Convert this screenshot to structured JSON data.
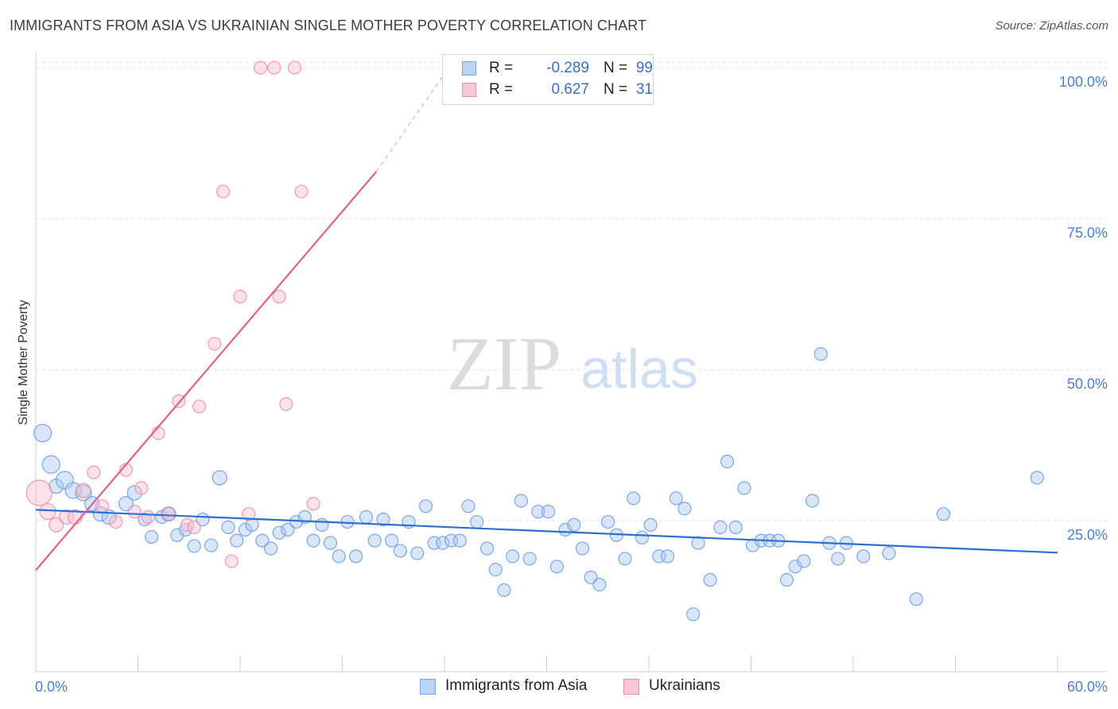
{
  "header": {
    "title": "IMMIGRANTS FROM ASIA VS UKRAINIAN SINGLE MOTHER POVERTY CORRELATION CHART",
    "source": "Source: ZipAtlas.com"
  },
  "watermark": {
    "zip": "ZIP",
    "atlas": "atlas"
  },
  "stats": [
    {
      "r_label": "R =",
      "r_value": "-0.289",
      "n_label": "N =",
      "n_value": "99",
      "color": "#7aa6e6",
      "fill": "#bcd3f3"
    },
    {
      "r_label": "R =",
      "r_value": "0.627",
      "n_label": "N =",
      "n_value": "31",
      "color": "#ec8fab",
      "fill": "#f8c8d6"
    }
  ],
  "chart_data": {
    "type": "scatter",
    "title": "IMMIGRANTS FROM ASIA VS UKRAINIAN SINGLE MOTHER POVERTY CORRELATION CHART",
    "xlabel": "",
    "ylabel": "Single Mother Poverty",
    "xlim": [
      0,
      60
    ],
    "ylim": [
      0,
      102
    ],
    "x_tick_labels": [
      "0.0%",
      "60.0%"
    ],
    "y_ticks": [
      25,
      50,
      75,
      100
    ],
    "y_tick_labels": [
      "25.0%",
      "50.0%",
      "75.0%",
      "100.0%"
    ],
    "grid": "horizontal dashed",
    "legend_position": "bottom-center",
    "series": [
      {
        "name": "Immigrants from Asia",
        "color": "#6f9fe0",
        "fill": "#a9c7ef",
        "trend": {
          "x": [
            0,
            60
          ],
          "y": [
            26.8,
            19.7
          ],
          "color": "#2f6fd0"
        },
        "points": [
          [
            0.4,
            39.5,
            11
          ],
          [
            0.9,
            34.3,
            11
          ],
          [
            1.2,
            30.7,
            9
          ],
          [
            1.7,
            31.7,
            11
          ],
          [
            2.2,
            30.0,
            10
          ],
          [
            2.8,
            29.6,
            10
          ],
          [
            3.3,
            27.8,
            9
          ],
          [
            3.8,
            26.1,
            9
          ],
          [
            4.3,
            25.6,
            9
          ],
          [
            5.3,
            27.8,
            9
          ],
          [
            5.8,
            29.6,
            9
          ],
          [
            6.4,
            25.2,
            8
          ],
          [
            6.8,
            22.3,
            8
          ],
          [
            7.4,
            25.6,
            8
          ],
          [
            7.8,
            26.1,
            9
          ],
          [
            8.3,
            22.6,
            8
          ],
          [
            8.8,
            23.5,
            8
          ],
          [
            9.3,
            20.8,
            8
          ],
          [
            9.8,
            25.2,
            8
          ],
          [
            10.3,
            20.9,
            8
          ],
          [
            10.8,
            32.1,
            9
          ],
          [
            11.3,
            23.9,
            8
          ],
          [
            11.8,
            21.7,
            8
          ],
          [
            12.3,
            23.5,
            8
          ],
          [
            12.7,
            24.3,
            8
          ],
          [
            13.3,
            21.7,
            8
          ],
          [
            13.8,
            20.4,
            8
          ],
          [
            14.3,
            23.0,
            8
          ],
          [
            14.8,
            23.5,
            8
          ],
          [
            15.3,
            24.8,
            8
          ],
          [
            15.8,
            25.6,
            8
          ],
          [
            16.3,
            21.7,
            8
          ],
          [
            16.8,
            24.3,
            8
          ],
          [
            17.3,
            21.3,
            8
          ],
          [
            17.8,
            19.1,
            8
          ],
          [
            18.3,
            24.8,
            8
          ],
          [
            18.8,
            19.1,
            8
          ],
          [
            19.4,
            25.6,
            8
          ],
          [
            19.9,
            21.7,
            8
          ],
          [
            20.4,
            25.2,
            8
          ],
          [
            20.9,
            21.7,
            8
          ],
          [
            21.4,
            20.0,
            8
          ],
          [
            21.9,
            24.8,
            8
          ],
          [
            22.4,
            19.6,
            8
          ],
          [
            22.9,
            27.4,
            8
          ],
          [
            23.4,
            21.3,
            8
          ],
          [
            23.9,
            21.3,
            8
          ],
          [
            24.4,
            21.7,
            8
          ],
          [
            24.9,
            21.7,
            8
          ],
          [
            25.4,
            27.4,
            8
          ],
          [
            25.9,
            24.8,
            8
          ],
          [
            26.5,
            20.4,
            8
          ],
          [
            27.0,
            16.9,
            8
          ],
          [
            27.5,
            13.5,
            8
          ],
          [
            28.0,
            19.1,
            8
          ],
          [
            28.5,
            28.3,
            8
          ],
          [
            29.0,
            18.7,
            8
          ],
          [
            29.5,
            26.5,
            8
          ],
          [
            30.1,
            26.5,
            8
          ],
          [
            30.6,
            17.4,
            8
          ],
          [
            31.1,
            23.5,
            8
          ],
          [
            31.6,
            24.3,
            8
          ],
          [
            32.1,
            20.4,
            8
          ],
          [
            32.6,
            15.6,
            8
          ],
          [
            33.1,
            14.4,
            8
          ],
          [
            33.6,
            24.8,
            8
          ],
          [
            34.1,
            22.6,
            8
          ],
          [
            34.6,
            18.7,
            8
          ],
          [
            35.1,
            28.7,
            8
          ],
          [
            35.6,
            22.2,
            8
          ],
          [
            36.1,
            24.3,
            8
          ],
          [
            36.6,
            19.1,
            8
          ],
          [
            37.1,
            19.1,
            8
          ],
          [
            37.6,
            28.7,
            8
          ],
          [
            38.1,
            27.0,
            8
          ],
          [
            38.6,
            9.5,
            8
          ],
          [
            38.9,
            21.3,
            8
          ],
          [
            39.6,
            15.2,
            8
          ],
          [
            40.2,
            23.9,
            8
          ],
          [
            40.6,
            34.8,
            8
          ],
          [
            41.1,
            23.9,
            8
          ],
          [
            41.6,
            30.4,
            8
          ],
          [
            42.1,
            20.9,
            8
          ],
          [
            42.6,
            21.7,
            8
          ],
          [
            43.1,
            21.7,
            8
          ],
          [
            43.6,
            21.7,
            8
          ],
          [
            44.1,
            15.2,
            8
          ],
          [
            44.6,
            17.4,
            8
          ],
          [
            45.1,
            18.3,
            8
          ],
          [
            45.6,
            28.3,
            8
          ],
          [
            46.1,
            52.6,
            8
          ],
          [
            46.6,
            21.3,
            8
          ],
          [
            47.1,
            18.7,
            8
          ],
          [
            47.6,
            21.3,
            8
          ],
          [
            48.6,
            19.1,
            8
          ],
          [
            50.1,
            19.6,
            8
          ],
          [
            51.7,
            12.0,
            8
          ],
          [
            53.3,
            26.1,
            8
          ],
          [
            58.8,
            32.1,
            8
          ]
        ]
      },
      {
        "name": "Ukrainians",
        "color": "#ec8fab",
        "fill": "#f6bfd0",
        "trend": {
          "x": [
            0,
            20
          ],
          "y": [
            16.8,
            82.8
          ],
          "dashed_to": [
            24.3,
            100.2
          ],
          "color": "#e0608d"
        },
        "points": [
          [
            0.2,
            29.6,
            16
          ],
          [
            0.7,
            26.5,
            10
          ],
          [
            1.2,
            24.3,
            9
          ],
          [
            1.8,
            25.6,
            9
          ],
          [
            2.3,
            25.6,
            9
          ],
          [
            2.8,
            30.0,
            9
          ],
          [
            3.4,
            33.0,
            8
          ],
          [
            3.9,
            27.4,
            8
          ],
          [
            4.7,
            24.8,
            8
          ],
          [
            5.3,
            33.4,
            8
          ],
          [
            5.8,
            26.5,
            8
          ],
          [
            6.2,
            30.4,
            8
          ],
          [
            6.6,
            25.6,
            8
          ],
          [
            7.2,
            39.5,
            8
          ],
          [
            7.8,
            26.1,
            8
          ],
          [
            8.4,
            44.8,
            8
          ],
          [
            8.9,
            24.3,
            8
          ],
          [
            9.3,
            23.9,
            8
          ],
          [
            9.6,
            43.9,
            8
          ],
          [
            10.5,
            54.3,
            8
          ],
          [
            11.0,
            79.5,
            8
          ],
          [
            11.5,
            18.3,
            8
          ],
          [
            12.0,
            62.1,
            8
          ],
          [
            12.5,
            26.1,
            8
          ],
          [
            13.2,
            100,
            8
          ],
          [
            14.0,
            100,
            8
          ],
          [
            14.3,
            62.1,
            8
          ],
          [
            14.7,
            44.3,
            8
          ],
          [
            15.2,
            100,
            8
          ],
          [
            15.6,
            79.5,
            8
          ],
          [
            16.3,
            27.8,
            8
          ]
        ]
      }
    ]
  },
  "legend": [
    {
      "label": "Immigrants from Asia",
      "color": "#7aa6e6",
      "fill": "#bcd3f3"
    },
    {
      "label": "Ukrainians",
      "color": "#ec8fab",
      "fill": "#f8c8d6"
    }
  ]
}
